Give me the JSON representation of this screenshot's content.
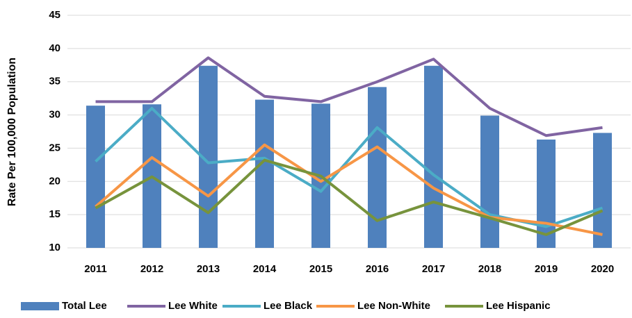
{
  "chart_data": {
    "type": "bar",
    "y_label": "Rate Per 100,000 Population",
    "categories": [
      "2011",
      "2012",
      "2013",
      "2014",
      "2015",
      "2016",
      "2017",
      "2018",
      "2019",
      "2020"
    ],
    "series": [
      {
        "name": "Total Lee",
        "type": "bar",
        "color": "#4f81bd",
        "values": [
          31.4,
          31.6,
          37.4,
          32.3,
          31.7,
          34.2,
          37.4,
          29.9,
          26.3,
          27.3
        ]
      },
      {
        "name": "Lee White",
        "type": "line",
        "color": "#8064a2",
        "values": [
          32,
          32,
          38.6,
          32.8,
          32,
          35,
          38.4,
          31,
          26.9,
          28.1
        ]
      },
      {
        "name": "Lee Black",
        "type": "line",
        "color": "#4bacc6",
        "values": [
          23,
          31,
          22.8,
          23.5,
          18.5,
          28.1,
          21,
          15,
          13.2,
          16
        ]
      },
      {
        "name": "Lee Non-White",
        "type": "line",
        "color": "#f79646",
        "values": [
          16.2,
          23.6,
          17.8,
          25.5,
          20,
          25.2,
          19,
          14.6,
          13.7,
          12
        ]
      },
      {
        "name": "Lee Hispanic",
        "type": "line",
        "color": "#77933c",
        "values": [
          16,
          20.7,
          15.3,
          23.2,
          20.8,
          14.1,
          16.9,
          14.5,
          12,
          15.6
        ]
      }
    ],
    "ylim": [
      10,
      45
    ],
    "yticks": [
      10,
      15,
      20,
      25,
      30,
      35,
      40,
      45
    ],
    "grid": true,
    "legend": "bottom"
  }
}
